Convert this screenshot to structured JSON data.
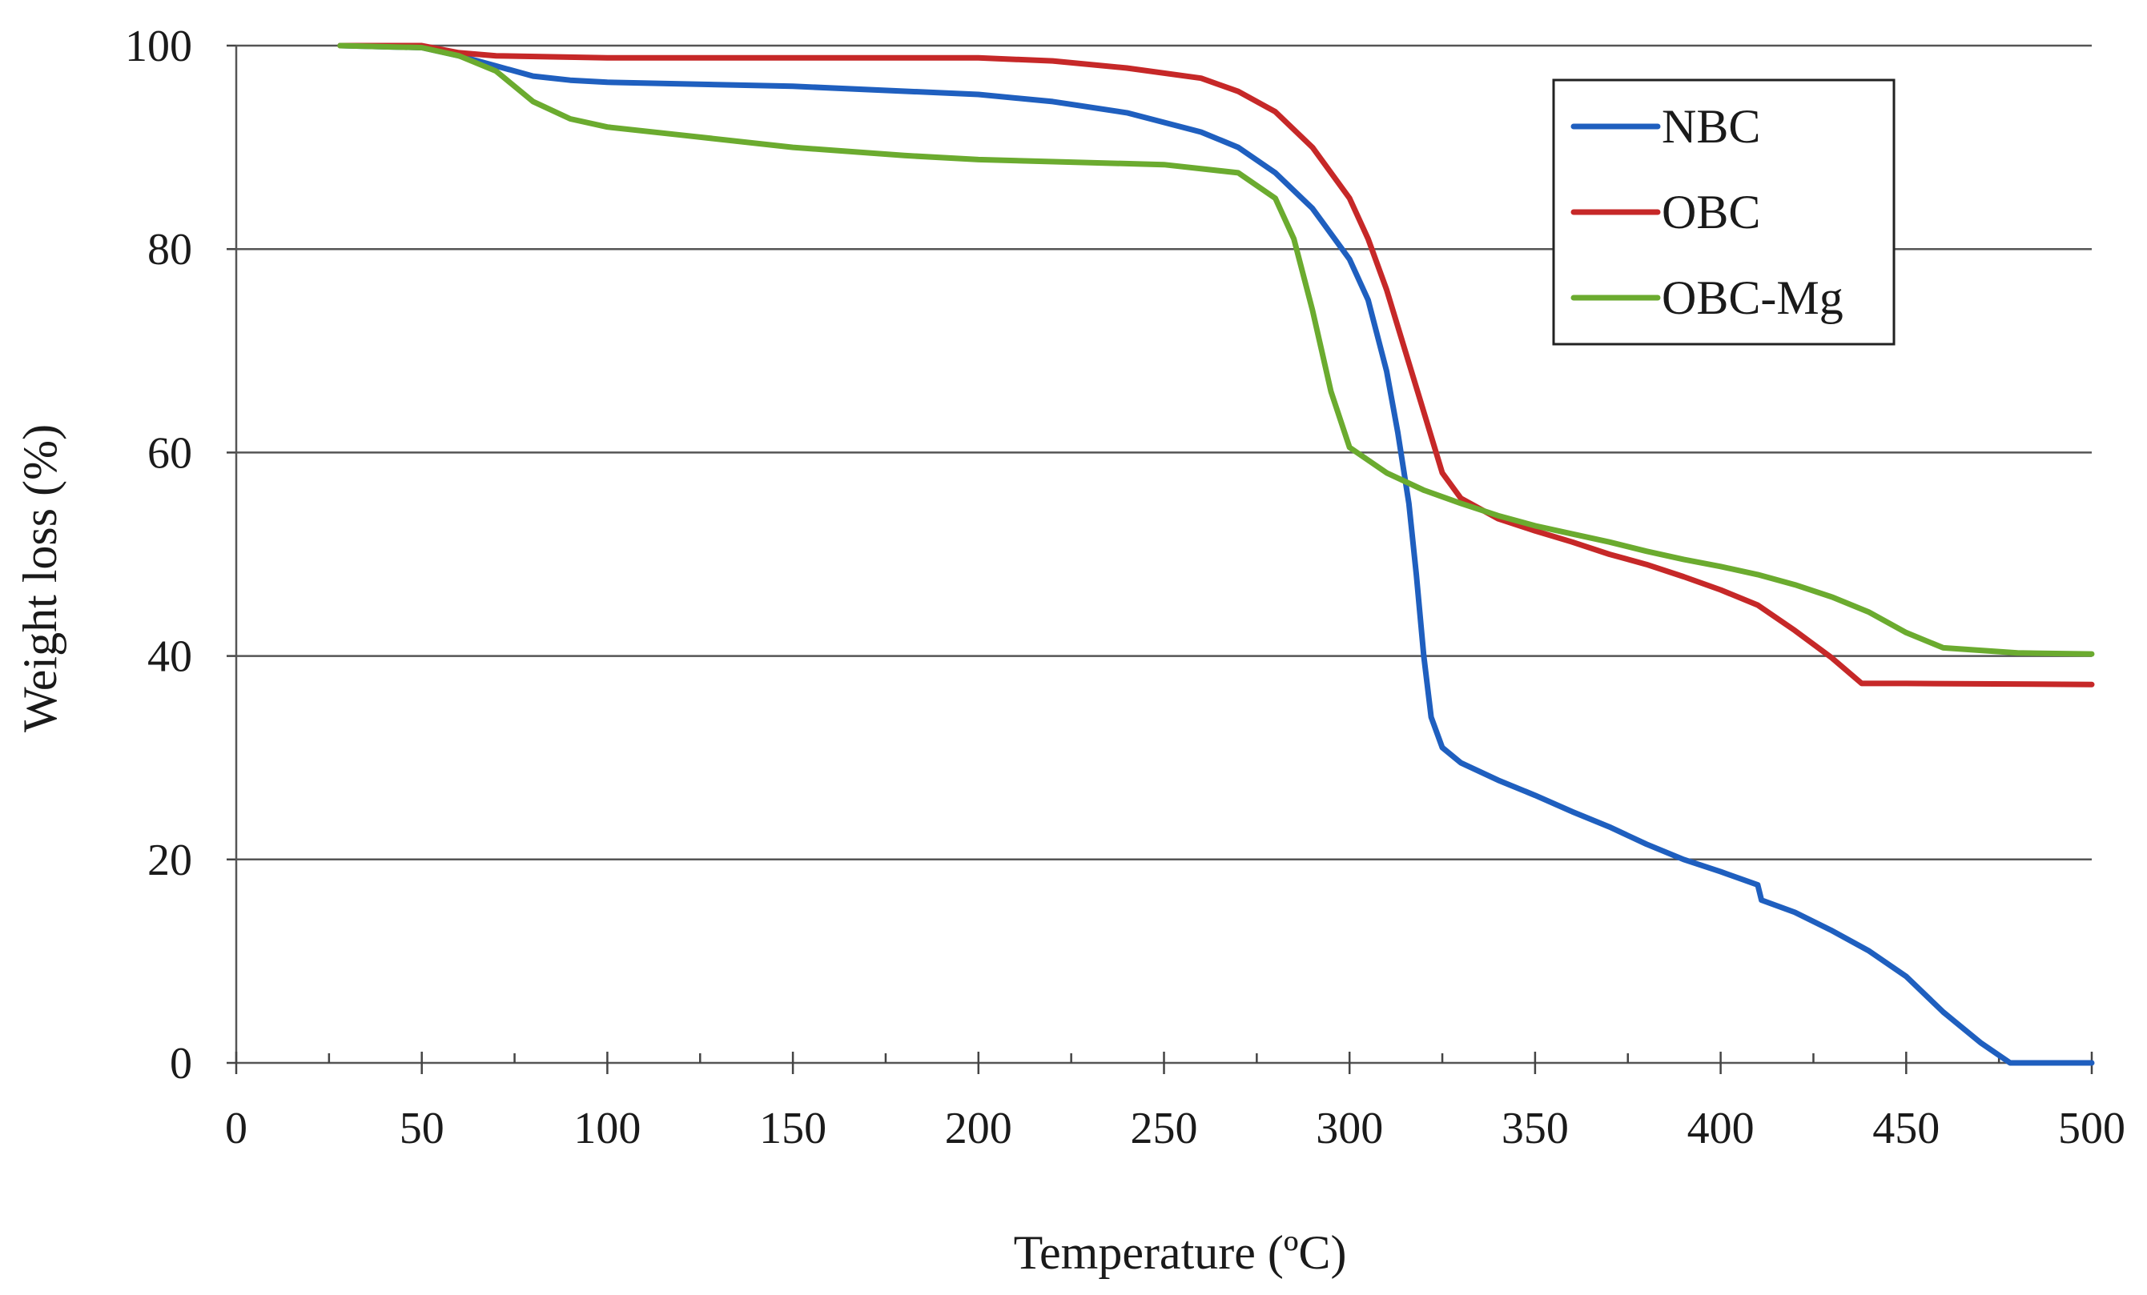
{
  "chart_data": {
    "type": "line",
    "title": "",
    "xlabel": "Temperature (ºC)",
    "ylabel": "Weight loss (%)",
    "xlim": [
      0,
      500
    ],
    "ylim": [
      0,
      100
    ],
    "x_ticks": [
      0,
      50,
      100,
      150,
      200,
      250,
      300,
      350,
      400,
      450,
      500
    ],
    "y_ticks": [
      0,
      20,
      40,
      60,
      80,
      100
    ],
    "x_tick_labels": [
      "0",
      "50",
      "100",
      "150",
      "200",
      "250",
      "300",
      "350",
      "400",
      "450",
      "500"
    ],
    "y_tick_labels": [
      "0",
      "20",
      "40",
      "60",
      "80",
      "100"
    ],
    "grid": "horizontal",
    "legend_position": "top-right",
    "series": [
      {
        "name": "NBC",
        "color": "#1f5fbf",
        "points": [
          [
            28,
            100
          ],
          [
            50,
            99.8
          ],
          [
            60,
            99
          ],
          [
            70,
            98
          ],
          [
            80,
            97
          ],
          [
            90,
            96.6
          ],
          [
            100,
            96.4
          ],
          [
            150,
            96
          ],
          [
            200,
            95.2
          ],
          [
            220,
            94.5
          ],
          [
            240,
            93.4
          ],
          [
            260,
            91.5
          ],
          [
            270,
            90
          ],
          [
            280,
            87.5
          ],
          [
            290,
            84
          ],
          [
            300,
            79
          ],
          [
            305,
            75
          ],
          [
            310,
            68
          ],
          [
            313,
            62
          ],
          [
            316,
            55
          ],
          [
            318,
            48
          ],
          [
            320,
            40
          ],
          [
            322,
            34
          ],
          [
            325,
            31
          ],
          [
            330,
            29.5
          ],
          [
            340,
            27.8
          ],
          [
            350,
            26.3
          ],
          [
            360,
            24.7
          ],
          [
            370,
            23.2
          ],
          [
            380,
            21.5
          ],
          [
            390,
            20
          ],
          [
            400,
            18.8
          ],
          [
            410,
            17.5
          ],
          [
            411,
            16
          ],
          [
            420,
            14.8
          ],
          [
            430,
            13
          ],
          [
            440,
            11
          ],
          [
            450,
            8.5
          ],
          [
            460,
            5
          ],
          [
            470,
            2
          ],
          [
            478,
            0
          ],
          [
            500,
            0
          ]
        ]
      },
      {
        "name": "OBC",
        "color": "#c62828",
        "points": [
          [
            28,
            100
          ],
          [
            50,
            100
          ],
          [
            60,
            99.3
          ],
          [
            70,
            99
          ],
          [
            100,
            98.8
          ],
          [
            150,
            98.8
          ],
          [
            200,
            98.8
          ],
          [
            220,
            98.5
          ],
          [
            240,
            97.8
          ],
          [
            260,
            96.8
          ],
          [
            270,
            95.5
          ],
          [
            280,
            93.5
          ],
          [
            290,
            90
          ],
          [
            300,
            85
          ],
          [
            305,
            81
          ],
          [
            310,
            76
          ],
          [
            315,
            70
          ],
          [
            320,
            64
          ],
          [
            325,
            58
          ],
          [
            330,
            55.5
          ],
          [
            340,
            53.5
          ],
          [
            350,
            52.3
          ],
          [
            360,
            51.2
          ],
          [
            370,
            50
          ],
          [
            380,
            49
          ],
          [
            390,
            47.8
          ],
          [
            400,
            46.5
          ],
          [
            410,
            45
          ],
          [
            420,
            42.5
          ],
          [
            430,
            39.8
          ],
          [
            438,
            37.3
          ],
          [
            450,
            37.3
          ],
          [
            500,
            37.2
          ]
        ]
      },
      {
        "name": "OBC-Mg",
        "color": "#6bab2f",
        "points": [
          [
            28,
            100
          ],
          [
            50,
            99.8
          ],
          [
            60,
            99
          ],
          [
            70,
            97.5
          ],
          [
            80,
            94.5
          ],
          [
            90,
            92.8
          ],
          [
            100,
            92
          ],
          [
            120,
            91.2
          ],
          [
            150,
            90
          ],
          [
            180,
            89.2
          ],
          [
            200,
            88.8
          ],
          [
            250,
            88.3
          ],
          [
            270,
            87.5
          ],
          [
            280,
            85
          ],
          [
            285,
            81
          ],
          [
            290,
            74
          ],
          [
            295,
            66
          ],
          [
            300,
            60.5
          ],
          [
            310,
            58
          ],
          [
            320,
            56.3
          ],
          [
            330,
            55
          ],
          [
            340,
            53.8
          ],
          [
            350,
            52.8
          ],
          [
            360,
            52
          ],
          [
            370,
            51.2
          ],
          [
            380,
            50.3
          ],
          [
            390,
            49.5
          ],
          [
            400,
            48.8
          ],
          [
            410,
            48
          ],
          [
            420,
            47
          ],
          [
            430,
            45.8
          ],
          [
            440,
            44.3
          ],
          [
            450,
            42.3
          ],
          [
            460,
            40.8
          ],
          [
            480,
            40.3
          ],
          [
            500,
            40.2
          ]
        ]
      }
    ]
  }
}
